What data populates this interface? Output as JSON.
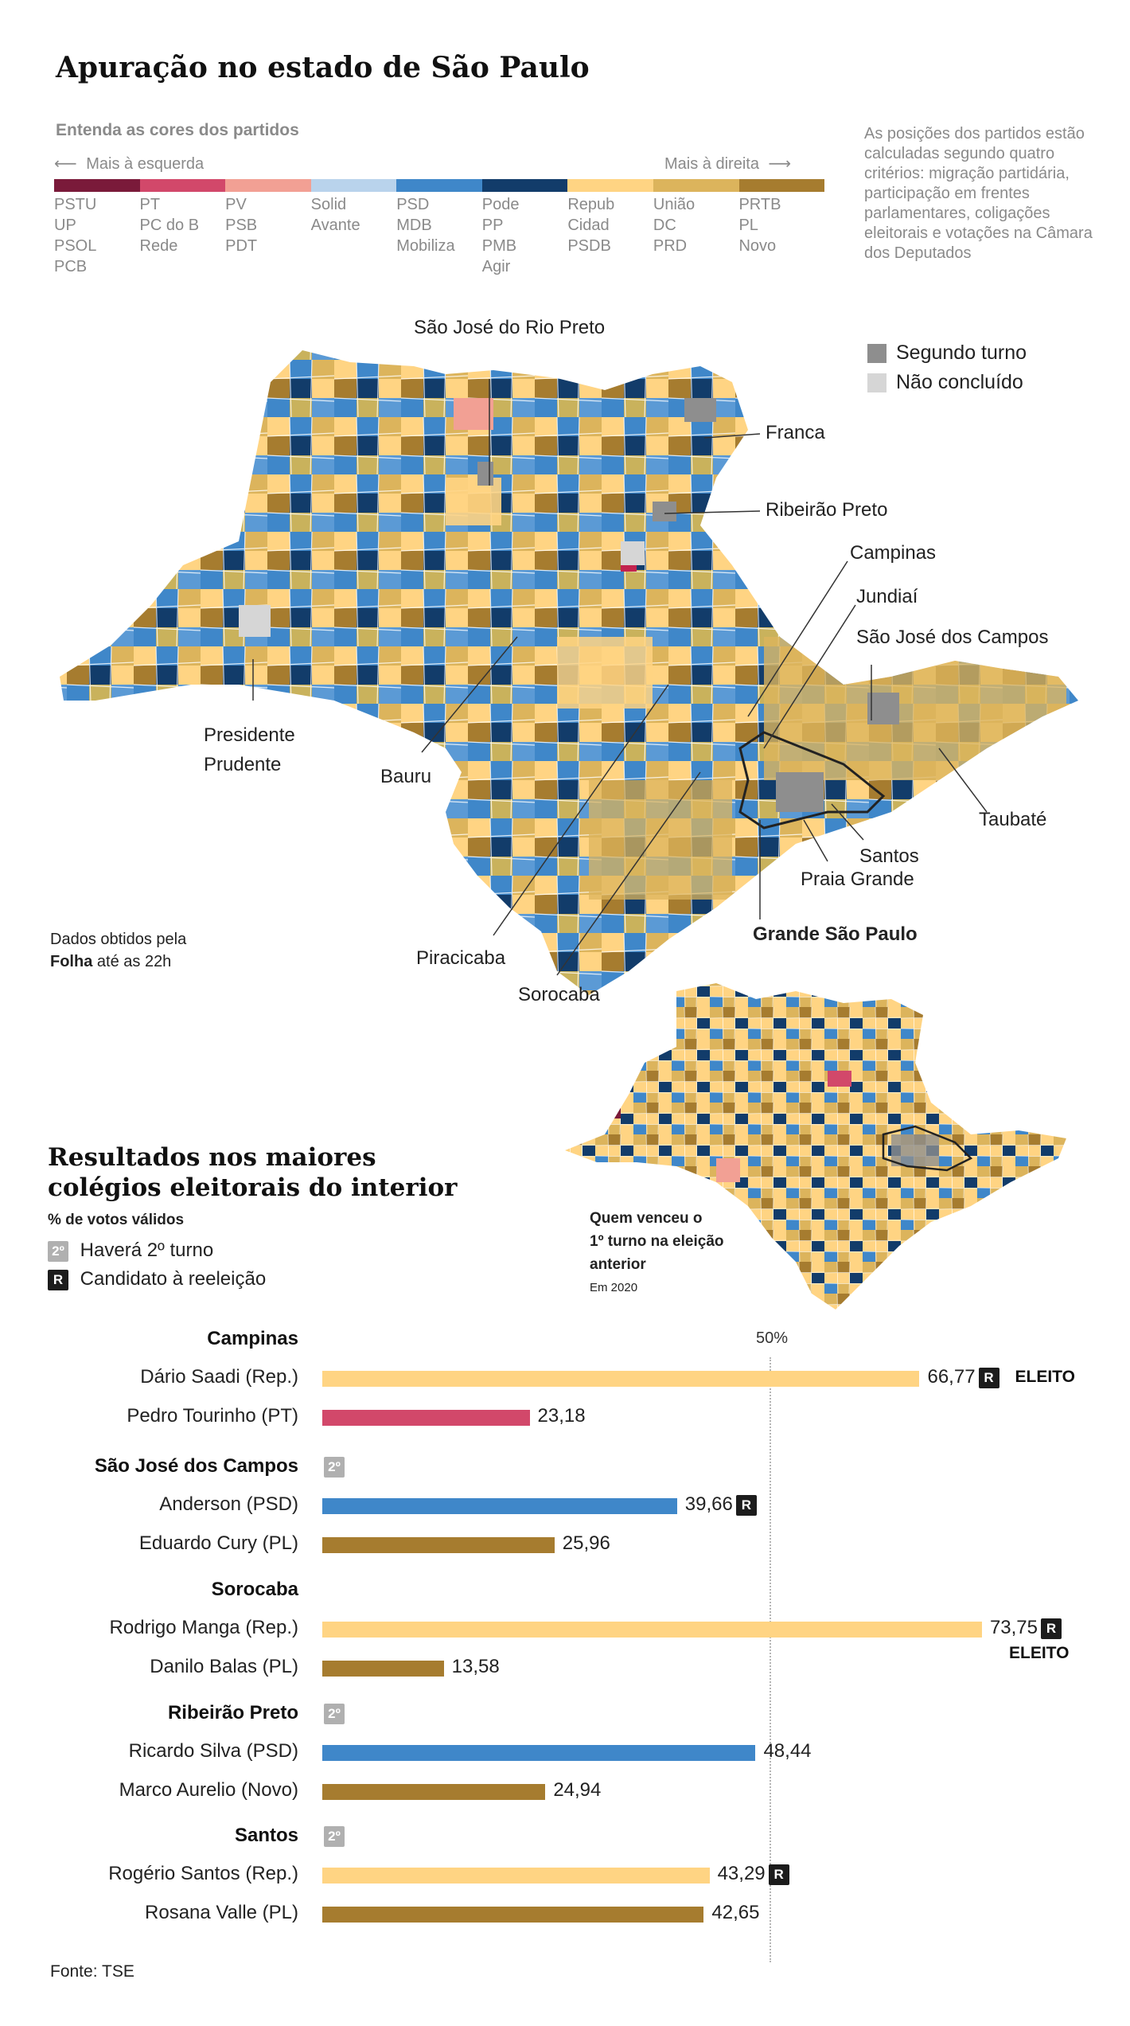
{
  "title": "Apuração no estado de São Paulo",
  "legend": {
    "title": "Entenda as cores dos partidos",
    "left_label": "Mais à esquerda",
    "right_label": "Mais à direita",
    "note": "As posições dos partidos estão calculadas segundo quatro critérios: migração partidária, participação em frentes parlamentares, coligações eleitorais e votações na Câmara dos Deputados",
    "groups": [
      {
        "color": "#7a1a3a",
        "parties": [
          "PSTU",
          "UP",
          "PSOL",
          "PCB"
        ]
      },
      {
        "color": "#d2486a",
        "parties": [
          "PT",
          "PC do B",
          "Rede"
        ]
      },
      {
        "color": "#f2a094",
        "parties": [
          "PV",
          "PSB",
          "PDT"
        ]
      },
      {
        "color": "#b9d3ec",
        "parties": [
          "Solid",
          "Avante"
        ]
      },
      {
        "color": "#3f87c9",
        "parties": [
          "PSD",
          "MDB",
          "Mobiliza"
        ]
      },
      {
        "color": "#123c6a",
        "parties": [
          "Pode",
          "PP",
          "PMB",
          "Agir"
        ]
      },
      {
        "color": "#ffd483",
        "parties": [
          "Repub",
          "Cidad",
          "PSDB"
        ]
      },
      {
        "color": "#dcb45c",
        "parties": [
          "União",
          "DC",
          "PRD"
        ]
      },
      {
        "color": "#a67c2f",
        "parties": [
          "PRTB",
          "PL",
          "Novo"
        ]
      }
    ]
  },
  "map": {
    "legend": {
      "second_round": "Segundo turno",
      "not_concluded": "Não concluído"
    },
    "labels": {
      "sjrp": "São José do Rio Preto",
      "franca": "Franca",
      "ribeirao": "Ribeirão Preto",
      "campinas": "Campinas",
      "jundiai": "Jundiaí",
      "sjc": "São José dos Campos",
      "pp1": "Presidente",
      "pp2": "Prudente",
      "bauru": "Bauru",
      "taubate": "Taubaté",
      "santos": "Santos",
      "praia": "Praia Grande",
      "gsp": "Grande São Paulo",
      "piracicaba": "Piracicaba",
      "sorocaba": "Sorocaba"
    },
    "source_note_1": "Dados obtidos pela",
    "source_note_bold": "Folha",
    "source_note_2": " até as 22h"
  },
  "map2": {
    "caption_1": "Quem venceu o",
    "caption_2": "1º turno na eleição",
    "caption_3": "anterior",
    "caption_small": "Em 2020"
  },
  "results": {
    "title_1": "Resultados nos maiores",
    "title_2": "colégios eleitorais do interior",
    "subtitle": "% de votos válidos",
    "key_second": "Haverá 2º turno",
    "key_reelection": "Candidato à reeleição",
    "badge_second": "2º",
    "badge_r": "R",
    "fifty_label": "50%",
    "eleito_label": "ELEITO"
  },
  "chart_data": {
    "type": "bar",
    "title": "Resultados nos maiores colégios eleitorais do interior",
    "ylabel": "% de votos válidos",
    "reference_line": 50,
    "groups": [
      {
        "city": "Campinas",
        "second_round": false,
        "candidates": [
          {
            "name": "Dário Saadi (Rep.)",
            "value": 66.77,
            "label": "66,77",
            "color": "#ffd483",
            "reelection": true,
            "elected": true
          },
          {
            "name": "Pedro Tourinho (PT)",
            "value": 23.18,
            "label": "23,18",
            "color": "#d2486a",
            "reelection": false,
            "elected": false
          }
        ]
      },
      {
        "city": "São José dos Campos",
        "second_round": true,
        "candidates": [
          {
            "name": "Anderson (PSD)",
            "value": 39.66,
            "label": "39,66",
            "color": "#3f87c9",
            "reelection": true,
            "elected": false
          },
          {
            "name": "Eduardo Cury (PL)",
            "value": 25.96,
            "label": "25,96",
            "color": "#a67c2f",
            "reelection": false,
            "elected": false
          }
        ]
      },
      {
        "city": "Sorocaba",
        "second_round": false,
        "candidates": [
          {
            "name": "Rodrigo Manga (Rep.)",
            "value": 73.75,
            "label": "73,75",
            "color": "#ffd483",
            "reelection": true,
            "elected": true
          },
          {
            "name": "Danilo Balas (PL)",
            "value": 13.58,
            "label": "13,58",
            "color": "#a67c2f",
            "reelection": false,
            "elected": false
          }
        ]
      },
      {
        "city": "Ribeirão Preto",
        "second_round": true,
        "candidates": [
          {
            "name": "Ricardo Silva (PSD)",
            "value": 48.44,
            "label": "48,44",
            "color": "#3f87c9",
            "reelection": false,
            "elected": false
          },
          {
            "name": "Marco Aurelio (Novo)",
            "value": 24.94,
            "label": "24,94",
            "color": "#a67c2f",
            "reelection": false,
            "elected": false
          }
        ]
      },
      {
        "city": "Santos",
        "second_round": true,
        "candidates": [
          {
            "name": "Rogério Santos (Rep.)",
            "value": 43.29,
            "label": "43,29",
            "color": "#ffd483",
            "reelection": true,
            "elected": false
          },
          {
            "name": "Rosana Valle (PL)",
            "value": 42.65,
            "label": "42,65",
            "color": "#a67c2f",
            "reelection": false,
            "elected": false
          }
        ]
      }
    ]
  },
  "source": "Fonte: TSE"
}
